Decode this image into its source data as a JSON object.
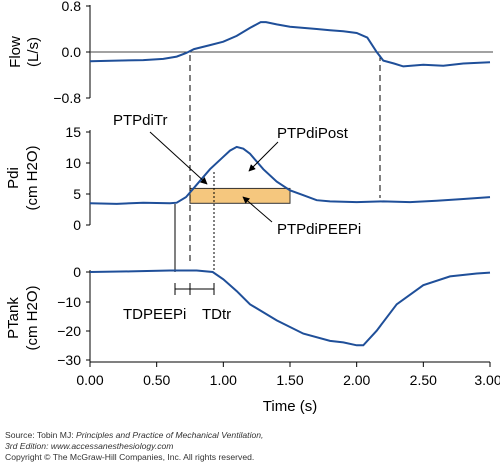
{
  "chart_data": [
    {
      "type": "line",
      "panel": "flow",
      "ylabel_main": "Flow",
      "ylabel_unit": "(L/s)",
      "yticks": [
        "0.8",
        "0.0",
        "−0.8"
      ],
      "ylim": [
        -0.8,
        0.8
      ],
      "x": [
        0.0,
        0.2,
        0.4,
        0.55,
        0.65,
        0.72,
        0.78,
        0.9,
        1.0,
        1.1,
        1.2,
        1.28,
        1.32,
        1.4,
        1.5,
        1.6,
        1.7,
        1.8,
        1.9,
        2.0,
        2.08,
        2.15,
        2.2,
        2.28,
        2.35,
        2.5,
        2.65,
        2.8,
        3.0
      ],
      "y": [
        -0.16,
        -0.15,
        -0.14,
        -0.12,
        -0.08,
        -0.02,
        0.05,
        0.12,
        0.18,
        0.28,
        0.42,
        0.52,
        0.52,
        0.48,
        0.44,
        0.42,
        0.4,
        0.38,
        0.36,
        0.33,
        0.25,
        0.0,
        -0.15,
        -0.2,
        -0.25,
        -0.22,
        -0.24,
        -0.2,
        -0.18
      ]
    },
    {
      "type": "line",
      "panel": "pdi",
      "ylabel_main": "Pdi",
      "ylabel_unit": "(cm H2O)",
      "yticks": [
        "15",
        "10",
        "5",
        "0"
      ],
      "ylim": [
        0,
        15
      ],
      "x": [
        0.0,
        0.2,
        0.4,
        0.6,
        0.65,
        0.72,
        0.8,
        0.9,
        1.0,
        1.05,
        1.1,
        1.15,
        1.2,
        1.3,
        1.4,
        1.5,
        1.6,
        1.7,
        1.8,
        2.0,
        2.2,
        2.4,
        2.6,
        2.8,
        3.0
      ],
      "y": [
        3.5,
        3.4,
        3.6,
        3.5,
        3.6,
        4.5,
        6.5,
        9.0,
        11.0,
        12.0,
        12.6,
        12.3,
        11.5,
        9.0,
        7.0,
        5.6,
        4.8,
        4.0,
        3.8,
        3.7,
        3.8,
        3.7,
        3.9,
        4.2,
        4.5
      ],
      "shaded_band": {
        "x_start": 0.75,
        "x_end": 1.5,
        "y_low": 3.5,
        "y_high": 5.9,
        "color": "#f5c77e"
      },
      "annotations": [
        "PTPdiTr",
        "PTPdiPost",
        "PTPdiPEEPi"
      ]
    },
    {
      "type": "line",
      "panel": "ptank",
      "ylabel_main": "PTank",
      "ylabel_unit": "(cm H2O)",
      "yticks": [
        "0",
        "−10",
        "−20",
        "−30"
      ],
      "ylim": [
        -30,
        0
      ],
      "x": [
        0.0,
        0.3,
        0.6,
        0.8,
        0.92,
        1.0,
        1.1,
        1.2,
        1.4,
        1.6,
        1.8,
        1.9,
        2.0,
        2.05,
        2.15,
        2.3,
        2.5,
        2.7,
        2.9,
        3.0
      ],
      "y": [
        0.0,
        0.2,
        0.5,
        0.5,
        0.0,
        -2.5,
        -6.5,
        -11.0,
        -16.5,
        -21.0,
        -23.5,
        -24.0,
        -25.0,
        -25.0,
        -20.0,
        -11.0,
        -4.5,
        -1.5,
        -0.5,
        -0.2
      ],
      "annotations": [
        "TDPEEPi",
        "TDtr"
      ]
    }
  ],
  "axes": {
    "xticks": [
      "0.00",
      "0.50",
      "1.00",
      "1.50",
      "2.00",
      "2.50",
      "3.00"
    ],
    "xlim": [
      0,
      3
    ],
    "xlabel": "Time (s)"
  },
  "colors": {
    "trace": "#1f4f99",
    "band": "#f5c77e",
    "band_stroke": "#333333"
  },
  "source": {
    "line1_prefix": "Source: Tobin MJ: ",
    "line1_title": "Principles and Practice of Mechanical Ventilation,",
    "line2": "3rd Edition: www.accessanesthesiology.com",
    "line3": "Copyright © The McGraw-Hill Companies, Inc. All rights reserved."
  }
}
